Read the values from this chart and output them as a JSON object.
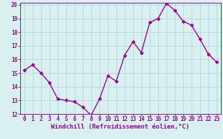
{
  "x": [
    0,
    1,
    2,
    3,
    4,
    5,
    6,
    7,
    8,
    9,
    10,
    11,
    12,
    13,
    14,
    15,
    16,
    17,
    18,
    19,
    20,
    21,
    22,
    23
  ],
  "y": [
    15.2,
    15.6,
    15.0,
    14.3,
    13.1,
    13.0,
    12.9,
    12.5,
    11.9,
    13.1,
    14.8,
    14.4,
    16.3,
    17.3,
    16.5,
    18.7,
    19.0,
    20.1,
    19.6,
    18.8,
    18.5,
    17.5,
    16.4,
    15.8
  ],
  "line_color": "#990099",
  "marker": "D",
  "marker_size": 2.5,
  "bg_color": "#d8f0f0",
  "grid_color": "#b8d4d4",
  "xlabel": "Windchill (Refroidissement éolien,°C)",
  "xlabel_color": "#990099",
  "ylim": [
    12,
    20
  ],
  "xlim": [
    -0.5,
    23.5
  ],
  "yticks": [
    12,
    13,
    14,
    15,
    16,
    17,
    18,
    19,
    20
  ],
  "xticks": [
    0,
    1,
    2,
    3,
    4,
    5,
    6,
    7,
    8,
    9,
    10,
    11,
    12,
    13,
    14,
    15,
    16,
    17,
    18,
    19,
    20,
    21,
    22,
    23
  ],
  "tick_color": "#990099",
  "tick_fontsize": 5.5,
  "xlabel_fontsize": 6.5,
  "line_width": 1.0
}
